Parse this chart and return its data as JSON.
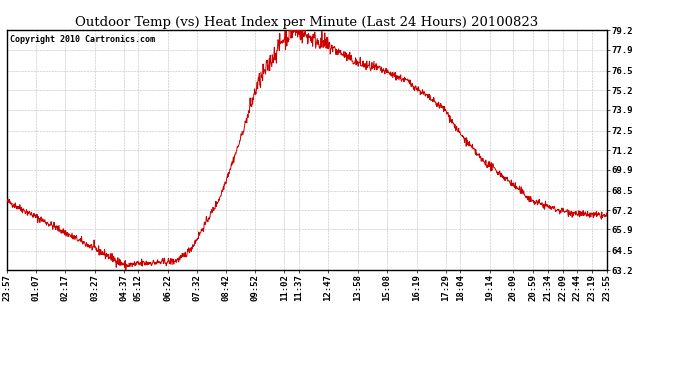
{
  "title": "Outdoor Temp (vs) Heat Index per Minute (Last 24 Hours) 20100823",
  "copyright": "Copyright 2010 Cartronics.com",
  "line_color": "#cc0000",
  "bg_color": "#ffffff",
  "grid_color": "#bbbbbb",
  "ylim": [
    63.2,
    79.2
  ],
  "yticks": [
    63.2,
    64.5,
    65.9,
    67.2,
    68.5,
    69.9,
    71.2,
    72.5,
    73.9,
    75.2,
    76.5,
    77.9,
    79.2
  ],
  "xtick_labels": [
    "23:57",
    "01:07",
    "02:17",
    "03:27",
    "04:37",
    "05:12",
    "06:22",
    "07:32",
    "08:42",
    "09:52",
    "11:02",
    "11:37",
    "12:47",
    "13:58",
    "15:08",
    "16:19",
    "17:29",
    "18:04",
    "19:14",
    "20:09",
    "20:59",
    "21:34",
    "22:09",
    "22:44",
    "23:19",
    "23:55"
  ],
  "title_fontsize": 9.5,
  "copyright_fontsize": 6,
  "tick_fontsize": 6.5,
  "figsize": [
    6.9,
    3.75
  ],
  "dpi": 100
}
